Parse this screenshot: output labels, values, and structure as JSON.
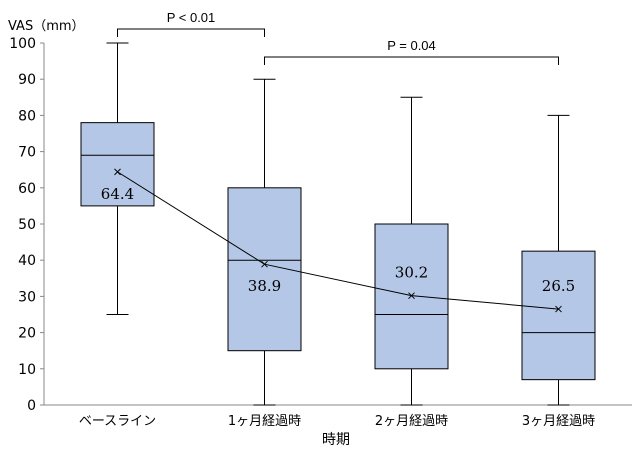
{
  "chart_data": {
    "type": "box",
    "ylabel": "VAS（mm）",
    "xlabel": "時期",
    "ylim": [
      0,
      100
    ],
    "yticks": [
      0,
      10,
      20,
      30,
      40,
      50,
      60,
      70,
      80,
      90,
      100
    ],
    "categories": [
      "ベースライン",
      "1ヶ月経過時",
      "2ヶ月経過時",
      "3ヶ月経過時"
    ],
    "boxes": [
      {
        "min": 25,
        "q1": 55,
        "median": 69,
        "q3": 78,
        "max": 100,
        "mean": 64.4
      },
      {
        "min": 0,
        "q1": 15,
        "median": 40,
        "q3": 60,
        "max": 90,
        "mean": 38.9
      },
      {
        "min": 0,
        "q1": 10,
        "median": 25,
        "q3": 50,
        "max": 85,
        "mean": 30.2
      },
      {
        "min": 0,
        "q1": 7,
        "median": 20,
        "q3": 42.5,
        "max": 80,
        "mean": 26.5
      }
    ],
    "mean_labels": [
      "64.4",
      "38.9",
      "30.2",
      "26.5"
    ],
    "annotations": [
      {
        "from": 0,
        "to": 1,
        "text": "P < 0.01"
      },
      {
        "from": 1,
        "to": 3,
        "text": "P = 0.04"
      }
    ],
    "colors": {
      "box_fill": "#b4c7e7",
      "stroke": "#000000"
    },
    "grid": false,
    "legend": "none"
  }
}
